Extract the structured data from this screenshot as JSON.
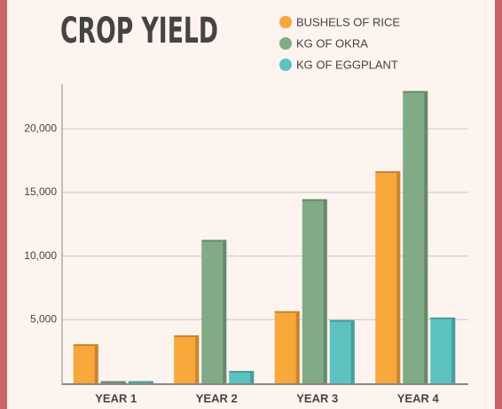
{
  "chart_data": {
    "type": "bar",
    "title": "CROP YIELD",
    "categories": [
      "YEAR 1",
      "YEAR 2",
      "YEAR 3",
      "YEAR 4"
    ],
    "series": [
      {
        "name": "BUSHELS OF RICE",
        "color": "#f8a73b",
        "values": [
          3000,
          3700,
          5600,
          16600
        ]
      },
      {
        "name": "KG OF OKRA",
        "color": "#80ab86",
        "values": [
          100,
          11200,
          14400,
          22900
        ]
      },
      {
        "name": "KG OF EGGPLANT",
        "color": "#5bc3bf",
        "values": [
          100,
          900,
          4900,
          5100
        ]
      }
    ],
    "ylim": [
      0,
      23500
    ],
    "yticks": [
      {
        "value": 5000,
        "label": "5,000"
      },
      {
        "value": 10000,
        "label": "10,000"
      },
      {
        "value": 15000,
        "label": "15,000"
      },
      {
        "value": 20000,
        "label": "20,000"
      }
    ],
    "grid": true
  }
}
